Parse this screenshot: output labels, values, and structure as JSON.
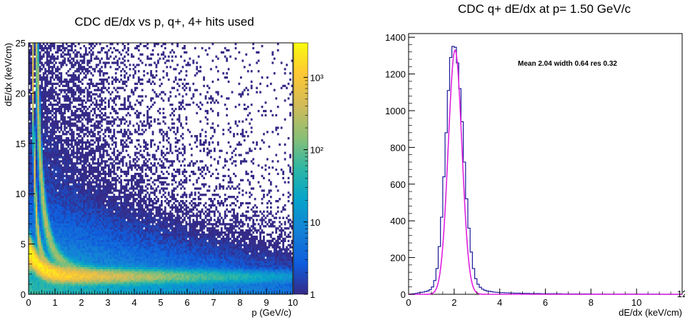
{
  "chart_data": [
    {
      "type": "heatmap",
      "title": "CDC dE/dx vs p, q+, 4+ hits used",
      "xlabel": "p (GeV/c)",
      "ylabel": "dE/dx (keV/cm)",
      "xlim": [
        0,
        10
      ],
      "ylim": [
        0,
        25
      ],
      "x_ticks": [
        "0",
        "1",
        "2",
        "3",
        "4",
        "5",
        "6",
        "7",
        "8",
        "9",
        "10"
      ],
      "y_ticks": [
        "0",
        "5",
        "10",
        "15",
        "20",
        "25"
      ],
      "z_scale": "log",
      "z_ticks": [
        "1",
        "10",
        "10²",
        "10³"
      ],
      "z_range": [
        1,
        3000
      ],
      "palette": [
        "#352a87",
        "#0f5cdd",
        "#1481d6",
        "#06a4ca",
        "#2eb7a4",
        "#87bf77",
        "#d1bb59",
        "#fec832",
        "#f9fb0e"
      ],
      "bands": [
        {
          "name": "pion/muon band",
          "dEdx_min_GeV_c": 2.0
        },
        {
          "name": "kaon band",
          "parametrization": "a/p^2"
        },
        {
          "name": "proton band",
          "parametrization": "a/p^2"
        }
      ]
    },
    {
      "type": "line",
      "title": "CDC q+ dE/dx at p= 1.50 GeV/c",
      "xlabel": "dE/dx (keV/cm)",
      "ylabel": "",
      "xlim": [
        0,
        12
      ],
      "ylim": [
        0,
        1420
      ],
      "x_ticks": [
        "0",
        "2",
        "4",
        "6",
        "8",
        "10",
        "12"
      ],
      "y_ticks": [
        "0",
        "200",
        "400",
        "600",
        "800",
        "1000",
        "1200",
        "1400"
      ],
      "annotation": "Mean 2.04  width 0.64  res 0.32",
      "fit": {
        "type": "gaussian",
        "mean": 2.04,
        "sigma": 0.3,
        "amplitude": 1330,
        "color": "#e020e0"
      },
      "series": [
        {
          "style": "histogram",
          "color": "#1a1a9a",
          "bin_width": 0.1,
          "x_start": 0.0,
          "values": [
            0,
            2,
            3,
            5,
            8,
            10,
            12,
            15,
            18,
            25,
            40,
            75,
            140,
            260,
            420,
            640,
            880,
            1110,
            1290,
            1350,
            1345,
            1260,
            1120,
            940,
            720,
            520,
            360,
            230,
            140,
            85,
            55,
            38,
            28,
            22,
            18,
            16,
            14,
            12,
            11,
            10,
            9,
            9,
            8,
            8,
            7,
            7,
            6,
            6,
            6,
            5,
            5,
            5,
            5,
            4,
            4,
            4,
            4,
            4,
            3,
            3,
            3,
            3,
            3,
            3,
            3,
            3,
            3,
            2,
            2,
            2,
            2,
            2,
            2,
            2,
            2,
            2,
            2,
            2,
            2,
            2,
            1,
            1,
            1,
            1,
            1,
            1,
            1,
            1,
            1,
            1,
            1,
            1,
            1,
            1,
            1,
            1,
            1,
            1,
            1,
            1,
            1,
            1,
            1,
            1,
            1,
            1,
            1,
            1,
            1,
            1,
            0,
            0,
            0,
            0,
            0,
            0,
            0,
            0,
            0,
            0
          ]
        }
      ]
    }
  ]
}
